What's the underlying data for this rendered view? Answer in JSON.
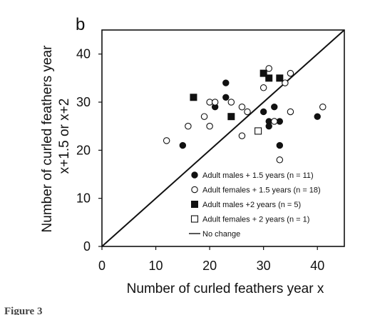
{
  "panel_label": "b",
  "figure_caption": "Figure 3",
  "chart_data": {
    "type": "scatter",
    "title": "",
    "xlabel": "Number of curled feathers year x",
    "ylabel_line1": "Number of curled feathers year",
    "ylabel_line2": "x+1.5 or x+2",
    "xlim": [
      0,
      45
    ],
    "ylim": [
      0,
      45
    ],
    "x_ticks": [
      0,
      10,
      20,
      30,
      40
    ],
    "y_ticks": [
      0,
      10,
      20,
      30,
      40
    ],
    "grid": false,
    "legend_position": "lower-right",
    "line_color": "#111111",
    "marker_color": "#111111",
    "background_color": "#ffffff",
    "series": [
      {
        "name": "Adult males + 1.5 years (n = 11)",
        "marker": "filled-circle",
        "points": [
          {
            "x": 15,
            "y": 21
          },
          {
            "x": 21,
            "y": 29
          },
          {
            "x": 23,
            "y": 34
          },
          {
            "x": 23,
            "y": 31
          },
          {
            "x": 30,
            "y": 28
          },
          {
            "x": 31,
            "y": 26
          },
          {
            "x": 31,
            "y": 25
          },
          {
            "x": 32,
            "y": 29
          },
          {
            "x": 33,
            "y": 26
          },
          {
            "x": 33,
            "y": 21
          },
          {
            "x": 40,
            "y": 27
          }
        ]
      },
      {
        "name": "Adult females + 1.5 years (n = 18)",
        "marker": "open-circle",
        "points": [
          {
            "x": 12,
            "y": 22
          },
          {
            "x": 16,
            "y": 25
          },
          {
            "x": 19,
            "y": 27
          },
          {
            "x": 20,
            "y": 30
          },
          {
            "x": 20,
            "y": 25
          },
          {
            "x": 21,
            "y": 30
          },
          {
            "x": 24,
            "y": 30
          },
          {
            "x": 26,
            "y": 23
          },
          {
            "x": 26,
            "y": 29
          },
          {
            "x": 27,
            "y": 28
          },
          {
            "x": 30,
            "y": 33
          },
          {
            "x": 31,
            "y": 37
          },
          {
            "x": 32,
            "y": 26
          },
          {
            "x": 33,
            "y": 18
          },
          {
            "x": 34,
            "y": 34
          },
          {
            "x": 35,
            "y": 36
          },
          {
            "x": 35,
            "y": 28
          },
          {
            "x": 41,
            "y": 29
          }
        ]
      },
      {
        "name": "Adult males +2 years (n = 5)",
        "marker": "filled-square",
        "points": [
          {
            "x": 17,
            "y": 31
          },
          {
            "x": 24,
            "y": 27
          },
          {
            "x": 30,
            "y": 36
          },
          {
            "x": 31,
            "y": 35
          },
          {
            "x": 33,
            "y": 35
          }
        ]
      },
      {
        "name": "Adult females + 2 years (n = 1)",
        "marker": "open-square",
        "points": [
          {
            "x": 29,
            "y": 24
          }
        ]
      },
      {
        "name": "No change",
        "marker": "line",
        "line": {
          "x": [
            0,
            45
          ],
          "y": [
            0,
            45
          ]
        }
      }
    ]
  }
}
